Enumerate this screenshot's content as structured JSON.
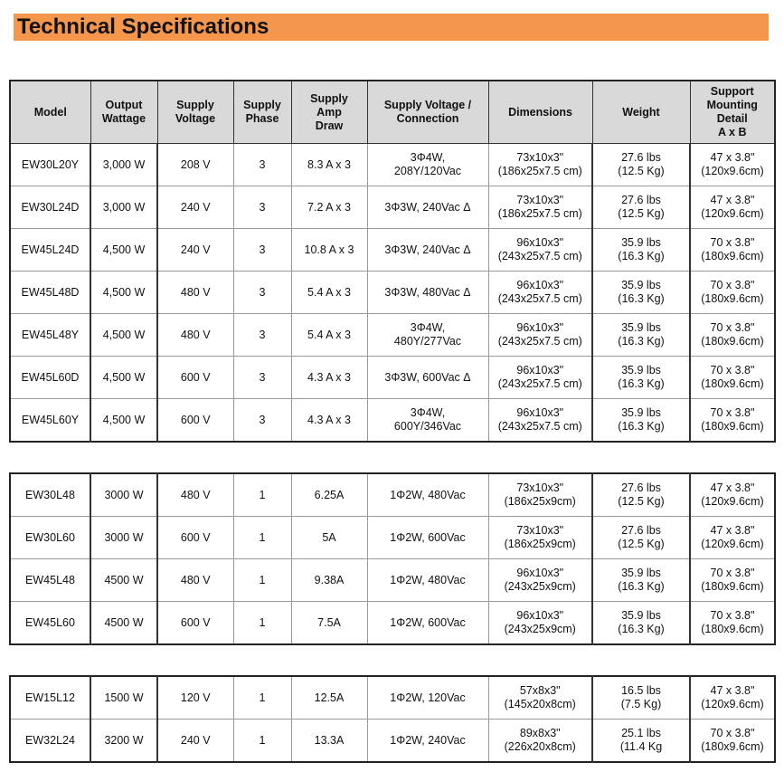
{
  "title": "Technical Specifications",
  "colors": {
    "title_bar": "#f4964c",
    "header_bg": "#d9d9d9"
  },
  "headers": [
    "Model",
    "Output\nWattage",
    "Supply\nVoltage",
    "Supply\nPhase",
    "Supply\nAmp\nDraw",
    "Supply Voltage /\nConnection",
    "Dimensions",
    "Weight",
    "Support\nMounting\nDetail\nA x B"
  ],
  "tables": [
    {
      "rows": [
        [
          "EW30L20Y",
          "3,000 W",
          "208 V",
          "3",
          "8.3 A x 3",
          "3Φ4W,\n208Y/120Vac",
          "73x10x3\"\n(186x25x7.5 cm)",
          "27.6 lbs\n(12.5 Kg)",
          "47 x 3.8\"\n(120x9.6cm)"
        ],
        [
          "EW30L24D",
          "3,000 W",
          "240 V",
          "3",
          "7.2 A x 3",
          "3Φ3W, 240Vac Δ",
          "73x10x3\"\n(186x25x7.5 cm)",
          "27.6 lbs\n(12.5 Kg)",
          "47 x 3.8\"\n(120x9.6cm)"
        ],
        [
          "EW45L24D",
          "4,500 W",
          "240 V",
          "3",
          "10.8 A x 3",
          "3Φ3W, 240Vac Δ",
          "96x10x3\"\n(243x25x7.5 cm)",
          "35.9 lbs\n(16.3 Kg)",
          "70 x 3.8\"\n(180x9.6cm)"
        ],
        [
          "EW45L48D",
          "4,500 W",
          "480 V",
          "3",
          "5.4 A x 3",
          "3Φ3W, 480Vac Δ",
          "96x10x3\"\n(243x25x7.5 cm)",
          "35.9 lbs\n(16.3 Kg)",
          "70 x 3.8\"\n(180x9.6cm)"
        ],
        [
          "EW45L48Y",
          "4,500 W",
          "480 V",
          "3",
          "5.4 A x 3",
          "3Φ4W,\n480Y/277Vac",
          "96x10x3\"\n(243x25x7.5 cm)",
          "35.9 lbs\n(16.3 Kg)",
          "70 x 3.8\"\n(180x9.6cm)"
        ],
        [
          "EW45L60D",
          "4,500 W",
          "600 V",
          "3",
          "4.3 A x 3",
          "3Φ3W, 600Vac Δ",
          "96x10x3\"\n(243x25x7.5 cm)",
          "35.9 lbs\n(16.3 Kg)",
          "70 x 3.8\"\n(180x9.6cm)"
        ],
        [
          "EW45L60Y",
          "4,500 W",
          "600 V",
          "3",
          "4.3 A x 3",
          "3Φ4W,\n600Y/346Vac",
          "96x10x3\"\n(243x25x7.5 cm)",
          "35.9 lbs\n(16.3 Kg)",
          "70 x 3.8\"\n(180x9.6cm)"
        ]
      ]
    },
    {
      "rows": [
        [
          "EW30L48",
          "3000 W",
          "480 V",
          "1",
          "6.25A",
          "1Φ2W, 480Vac",
          "73x10x3\"\n(186x25x9cm)",
          "27.6 lbs\n(12.5 Kg)",
          "47 x 3.8\"\n(120x9.6cm)"
        ],
        [
          "EW30L60",
          "3000 W",
          "600 V",
          "1",
          "5A",
          "1Φ2W, 600Vac",
          "73x10x3\"\n(186x25x9cm)",
          "27.6 lbs\n(12.5 Kg)",
          "47 x 3.8\"\n(120x9.6cm)"
        ],
        [
          "EW45L48",
          "4500 W",
          "480 V",
          "1",
          "9.38A",
          "1Φ2W, 480Vac",
          "96x10x3\"\n(243x25x9cm)",
          "35.9 lbs\n(16.3 Kg)",
          "70 x 3.8\"\n(180x9.6cm)"
        ],
        [
          "EW45L60",
          "4500 W",
          "600 V",
          "1",
          "7.5A",
          "1Φ2W, 600Vac",
          "96x10x3\"\n(243x25x9cm)",
          "35.9 lbs\n(16.3 Kg)",
          "70 x 3.8\"\n(180x9.6cm)"
        ]
      ]
    },
    {
      "rows": [
        [
          "EW15L12",
          "1500 W",
          "120 V",
          "1",
          "12.5A",
          "1Φ2W, 120Vac",
          "57x8x3\"\n(145x20x8cm)",
          "16.5 lbs\n(7.5 Kg)",
          "47 x 3.8\"\n(120x9.6cm)"
        ],
        [
          "EW32L24",
          "3200 W",
          "240 V",
          "1",
          "13.3A",
          "1Φ2W, 240Vac",
          "89x8x3\"\n(226x20x8cm)",
          "25.1 lbs\n(11.4 Kg",
          "70 x 3.8\"\n(180x9.6cm)"
        ]
      ]
    }
  ]
}
